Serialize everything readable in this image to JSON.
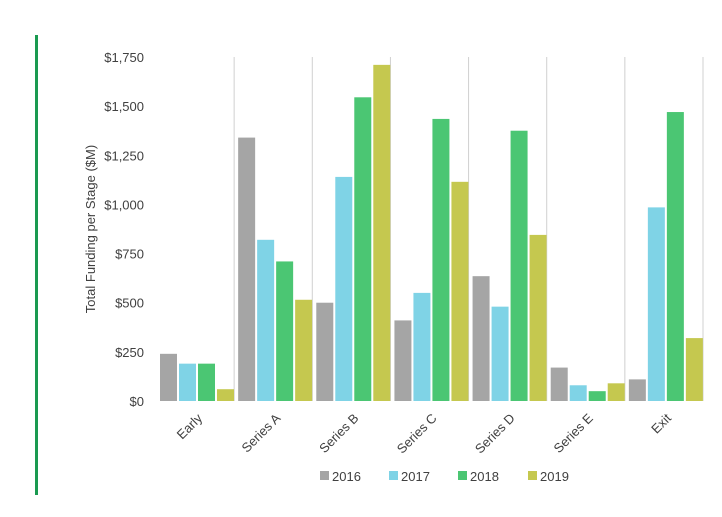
{
  "chart_data": {
    "type": "bar",
    "title": "",
    "xlabel": "",
    "ylabel": "Total Funding per Stage ($M)",
    "ylim": [
      0,
      1750
    ],
    "yticks": [
      "$0",
      "$250",
      "$500",
      "$750",
      "$1,000",
      "$1,250",
      "$1,500",
      "$1,750"
    ],
    "ytick_values": [
      0,
      250,
      500,
      750,
      1000,
      1250,
      1500,
      1750
    ],
    "categories": [
      "Early",
      "Series A",
      "Series B",
      "Series C",
      "Series D",
      "Series E",
      "Exit"
    ],
    "series": [
      {
        "name": "2016",
        "color": "#a5a5a5",
        "values": [
          240,
          1340,
          500,
          410,
          635,
          170,
          110
        ]
      },
      {
        "name": "2017",
        "color": "#7fd3e6",
        "values": [
          190,
          820,
          1140,
          550,
          480,
          80,
          985
        ]
      },
      {
        "name": "2018",
        "color": "#4bc673",
        "values": [
          190,
          710,
          1545,
          1435,
          1375,
          50,
          1470
        ]
      },
      {
        "name": "2019",
        "color": "#c5c84f",
        "values": [
          60,
          515,
          1710,
          1115,
          845,
          90,
          320
        ]
      }
    ],
    "legend": "bottom",
    "grid": false
  },
  "accent_color": "#1a9a50"
}
